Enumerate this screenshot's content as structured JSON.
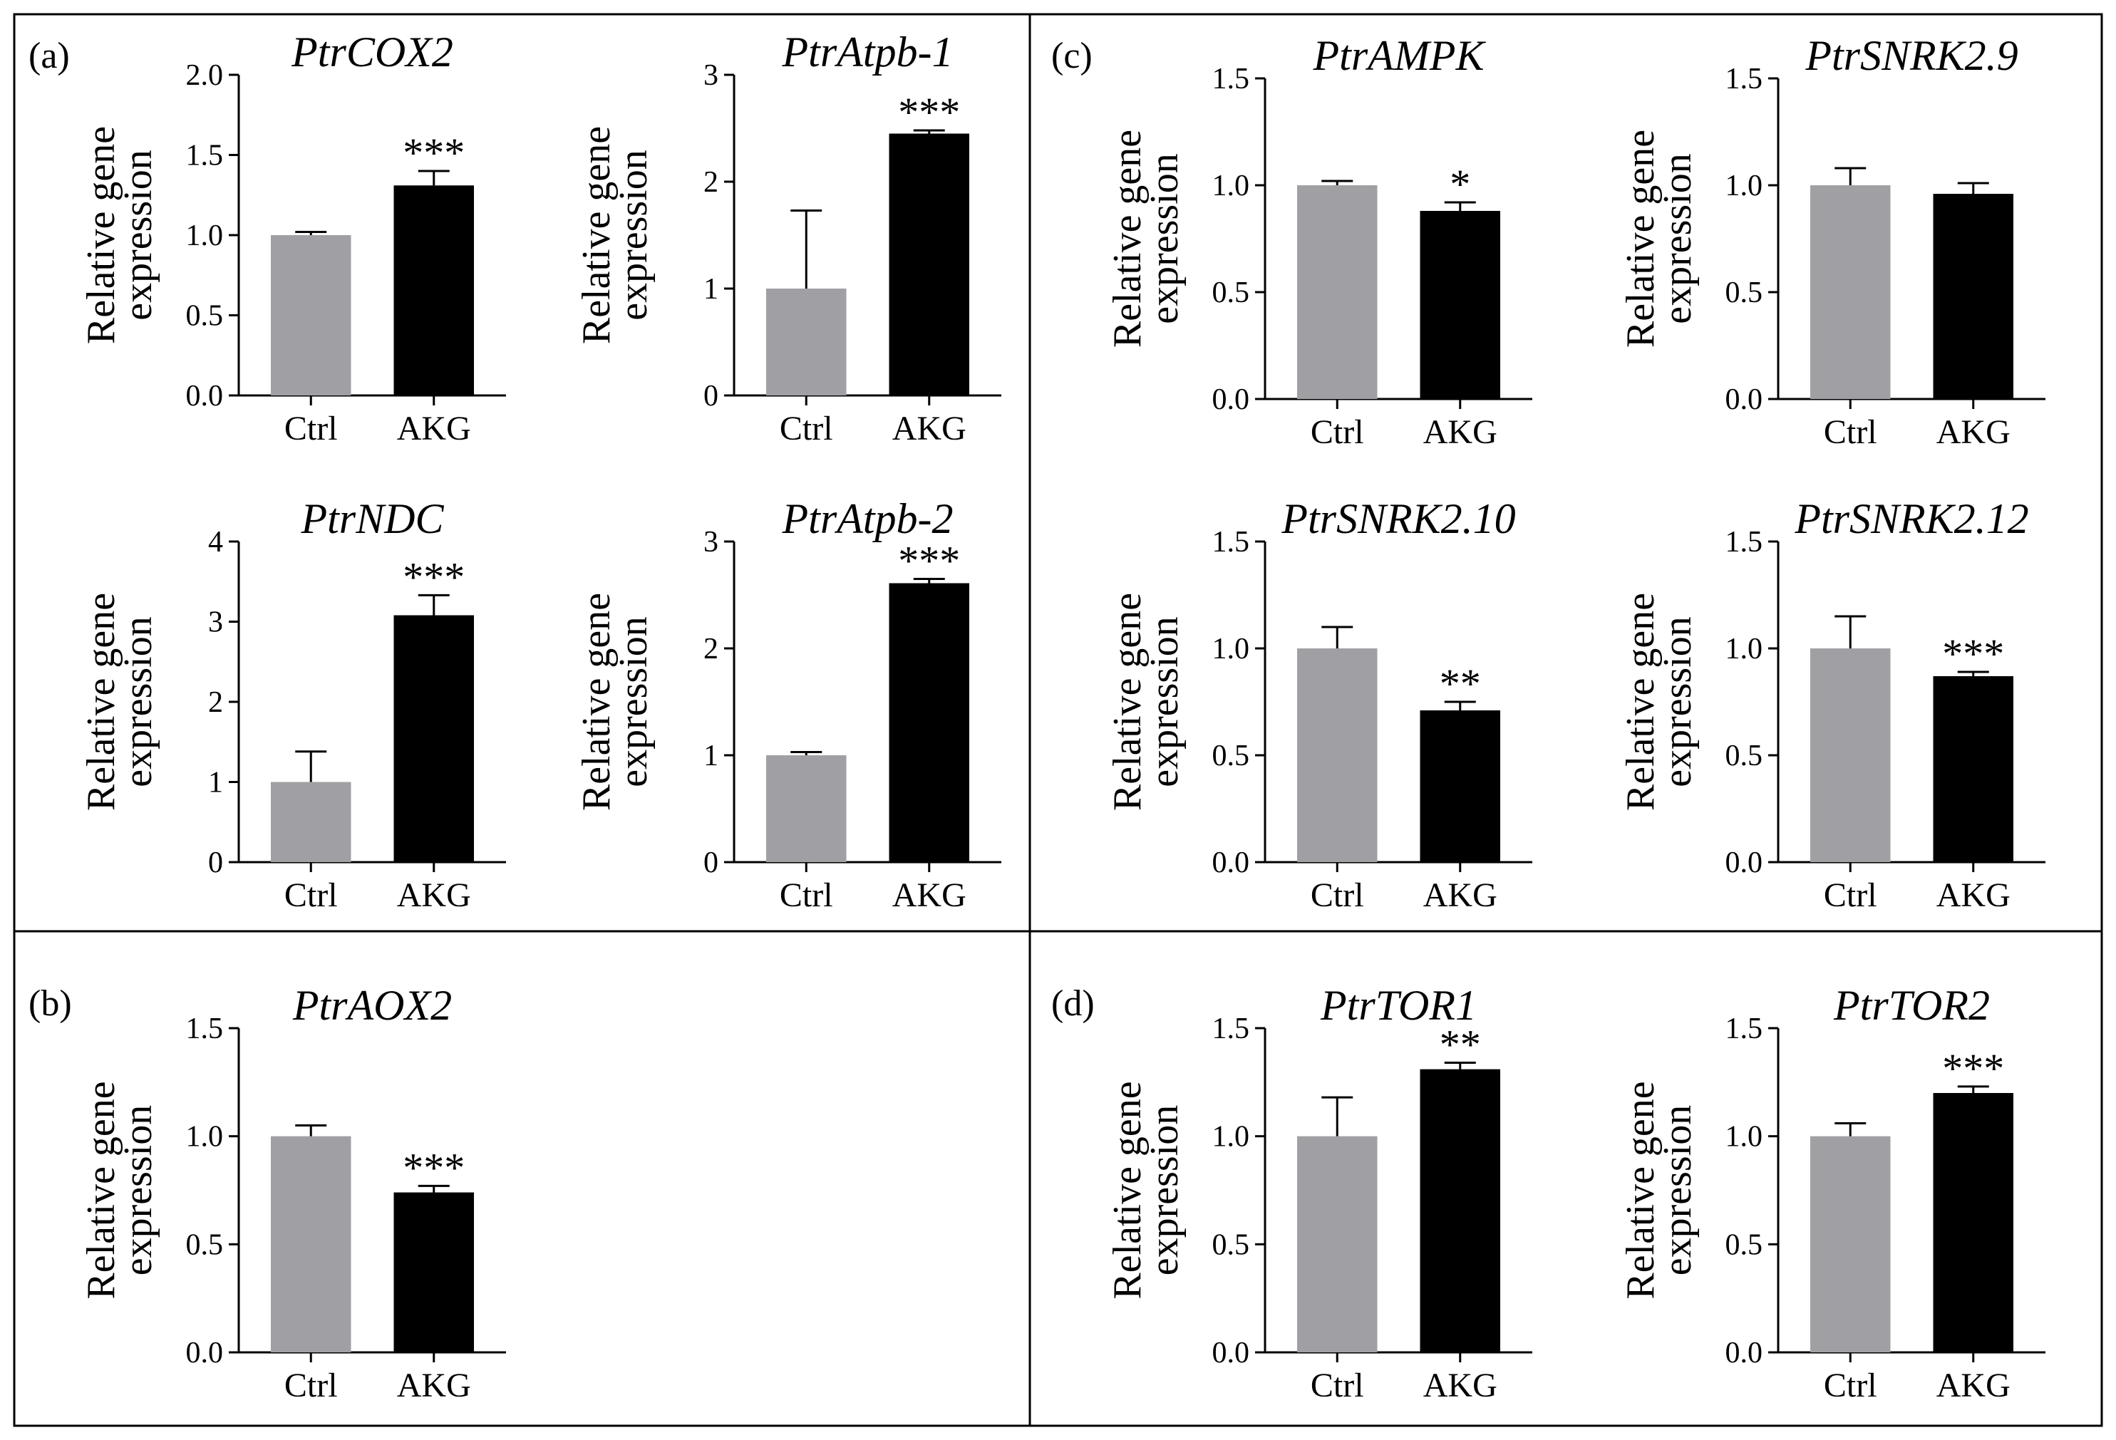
{
  "figure": {
    "panel_labels": [
      "(a)",
      "(b)",
      "(c)",
      "(d)"
    ],
    "ylabel_line1": "Relative gene",
    "ylabel_line2": "expression"
  },
  "colors": {
    "ctrl": "#a0a0a4",
    "akg": "#000000",
    "frame": "#000000"
  },
  "chart_data": [
    {
      "type": "bar",
      "panel": "a",
      "title": "PtrCOX2",
      "categories": [
        "Ctrl",
        "AKG"
      ],
      "values": [
        1.0,
        1.31
      ],
      "errors": [
        0.02,
        0.09
      ],
      "significance": [
        "",
        "***"
      ],
      "ylim": [
        0,
        2.0
      ],
      "yticks": [
        "0.0",
        "0.5",
        "1.0",
        "1.5",
        "2.0"
      ],
      "ylabel": "Relative gene expression"
    },
    {
      "type": "bar",
      "panel": "a",
      "title": "PtrAtpb-1",
      "categories": [
        "Ctrl",
        "AKG"
      ],
      "values": [
        1.0,
        2.45
      ],
      "errors": [
        0.73,
        0.03
      ],
      "significance": [
        "",
        "***"
      ],
      "ylim": [
        0,
        3
      ],
      "yticks": [
        "0",
        "1",
        "2",
        "3"
      ],
      "ylabel": "Relative gene expression"
    },
    {
      "type": "bar",
      "panel": "a",
      "title": "PtrNDC",
      "categories": [
        "Ctrl",
        "AKG"
      ],
      "values": [
        1.0,
        3.08
      ],
      "errors": [
        0.38,
        0.25
      ],
      "significance": [
        "",
        "***"
      ],
      "ylim": [
        0,
        4
      ],
      "yticks": [
        "0",
        "1",
        "2",
        "3",
        "4"
      ],
      "ylabel": "Relative gene expression"
    },
    {
      "type": "bar",
      "panel": "a",
      "title": "PtrAtpb-2",
      "categories": [
        "Ctrl",
        "AKG"
      ],
      "values": [
        1.0,
        2.61
      ],
      "errors": [
        0.03,
        0.04
      ],
      "significance": [
        "",
        "***"
      ],
      "ylim": [
        0,
        3
      ],
      "yticks": [
        "0",
        "1",
        "2",
        "3"
      ],
      "ylabel": "Relative gene expression"
    },
    {
      "type": "bar",
      "panel": "c",
      "title": "PtrAMPK",
      "categories": [
        "Ctrl",
        "AKG"
      ],
      "values": [
        1.0,
        0.88
      ],
      "errors": [
        0.02,
        0.04
      ],
      "significance": [
        "",
        "*"
      ],
      "ylim": [
        0,
        1.5
      ],
      "yticks": [
        "0.0",
        "0.5",
        "1.0",
        "1.5"
      ],
      "ylabel": "Relative gene expression"
    },
    {
      "type": "bar",
      "panel": "c",
      "title": "PtrSNRK2.9",
      "categories": [
        "Ctrl",
        "AKG"
      ],
      "values": [
        1.0,
        0.96
      ],
      "errors": [
        0.08,
        0.05
      ],
      "significance": [
        "",
        ""
      ],
      "ylim": [
        0,
        1.5
      ],
      "yticks": [
        "0.0",
        "0.5",
        "1.0",
        "1.5"
      ],
      "ylabel": "Relative gene expression"
    },
    {
      "type": "bar",
      "panel": "c",
      "title": "PtrSNRK2.10",
      "categories": [
        "Ctrl",
        "AKG"
      ],
      "values": [
        1.0,
        0.71
      ],
      "errors": [
        0.1,
        0.04
      ],
      "significance": [
        "",
        "**"
      ],
      "ylim": [
        0,
        1.5
      ],
      "yticks": [
        "0.0",
        "0.5",
        "1.0",
        "1.5"
      ],
      "ylabel": "Relative gene expression"
    },
    {
      "type": "bar",
      "panel": "c",
      "title": "PtrSNRK2.12",
      "categories": [
        "Ctrl",
        "AKG"
      ],
      "values": [
        1.0,
        0.87
      ],
      "errors": [
        0.15,
        0.02
      ],
      "significance": [
        "",
        "***"
      ],
      "ylim": [
        0,
        1.5
      ],
      "yticks": [
        "0.0",
        "0.5",
        "1.0",
        "1.5"
      ],
      "ylabel": "Relative gene expression"
    },
    {
      "type": "bar",
      "panel": "b",
      "title": "PtrAOX2",
      "categories": [
        "Ctrl",
        "AKG"
      ],
      "values": [
        1.0,
        0.74
      ],
      "errors": [
        0.05,
        0.03
      ],
      "significance": [
        "",
        "***"
      ],
      "ylim": [
        0,
        1.5
      ],
      "yticks": [
        "0.0",
        "0.5",
        "1.0",
        "1.5"
      ],
      "ylabel": "Relative gene expression"
    },
    {
      "type": "bar",
      "panel": "d",
      "title": "PtrTOR1",
      "categories": [
        "Ctrl",
        "AKG"
      ],
      "values": [
        1.0,
        1.31
      ],
      "errors": [
        0.18,
        0.03
      ],
      "significance": [
        "",
        "**"
      ],
      "ylim": [
        0,
        1.5
      ],
      "yticks": [
        "0.0",
        "0.5",
        "1.0",
        "1.5"
      ],
      "ylabel": "Relative gene expression"
    },
    {
      "type": "bar",
      "panel": "d",
      "title": "PtrTOR2",
      "categories": [
        "Ctrl",
        "AKG"
      ],
      "values": [
        1.0,
        1.2
      ],
      "errors": [
        0.06,
        0.03
      ],
      "significance": [
        "",
        "***"
      ],
      "ylim": [
        0,
        1.5
      ],
      "yticks": [
        "0.0",
        "0.5",
        "1.0",
        "1.5"
      ],
      "ylabel": "Relative gene expression"
    }
  ]
}
